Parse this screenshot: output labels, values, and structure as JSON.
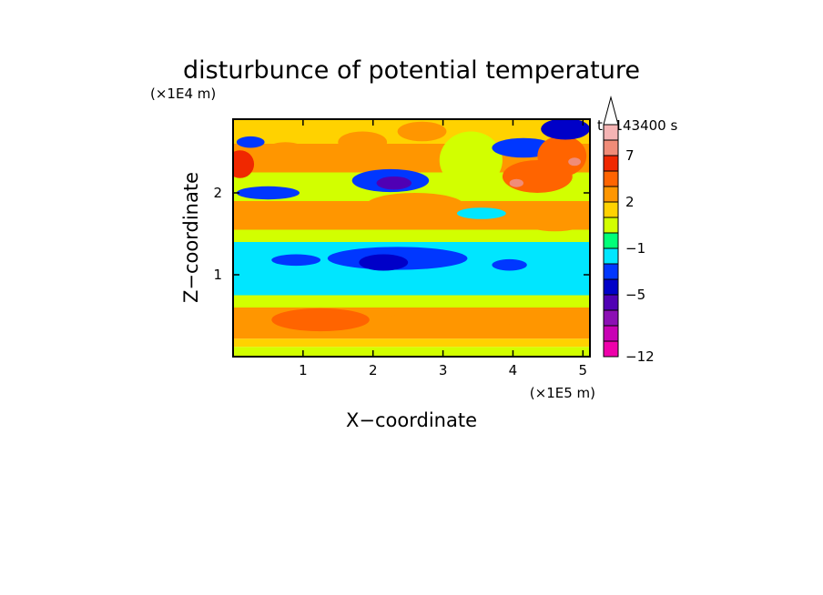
{
  "chart_data": {
    "type": "heatmap",
    "title": "disturbunce of potential temperature",
    "xlabel": "X−coordinate",
    "ylabel": "Z−coordinate",
    "x_unit": "(×1E5 m)",
    "y_unit": "(×1E4 m)",
    "time_label": "t=143400 s",
    "xlim": [
      0,
      5.1
    ],
    "ylim": [
      0,
      2.9
    ],
    "x_ticks": [
      1,
      2,
      3,
      4,
      5
    ],
    "y_ticks": [
      1,
      2
    ],
    "x_tick_labels": [
      "1",
      "2",
      "3",
      "4",
      "5"
    ],
    "y_tick_labels": [
      "1",
      "2"
    ],
    "colorbar": {
      "levels": [
        -12,
        -10,
        -8,
        -6,
        -5,
        -4,
        -3,
        -1,
        0,
        1,
        2,
        4,
        5,
        7,
        9,
        11
      ],
      "labels": [
        {
          "value": -12,
          "text": "−12"
        },
        {
          "value": -5,
          "text": "−5"
        },
        {
          "value": -1,
          "text": "−1"
        },
        {
          "value": 2,
          "text": "2"
        },
        {
          "value": 7,
          "text": "7"
        }
      ],
      "colors": [
        "#ee00aa",
        "#c800b4",
        "#8c0fb4",
        "#5000b4",
        "#0000c8",
        "#0037ff",
        "#00e6ff",
        "#00ff78",
        "#d2ff00",
        "#ffd200",
        "#ff9600",
        "#ff6400",
        "#f02800",
        "#f08c78",
        "#f5b4b4"
      ],
      "extend": "max"
    },
    "bands": [
      {
        "z": [
          0.0,
          0.12
        ],
        "value": 0.5
      },
      {
        "z": [
          0.12,
          0.22
        ],
        "value": 1.2
      },
      {
        "z": [
          0.22,
          0.6
        ],
        "value": 2.6
      },
      {
        "z": [
          0.6,
          0.75
        ],
        "value": 0.6
      },
      {
        "z": [
          0.75,
          1.4
        ],
        "value": -1.5
      },
      {
        "z": [
          1.4,
          1.55
        ],
        "value": 0.5
      },
      {
        "z": [
          1.55,
          1.9
        ],
        "value": 2.8
      },
      {
        "z": [
          1.9,
          2.25
        ],
        "value": 0.6
      },
      {
        "z": [
          2.25,
          2.6
        ],
        "value": 2.5
      },
      {
        "z": [
          2.6,
          2.9
        ],
        "value": 1.0
      }
    ],
    "anomalies": [
      {
        "x": 0.1,
        "z": 2.35,
        "rx": 0.2,
        "rz": 0.17,
        "value": 5.5
      },
      {
        "x": 0.25,
        "z": 2.62,
        "rx": 0.2,
        "rz": 0.07,
        "value": -3.5
      },
      {
        "x": 0.5,
        "z": 2.0,
        "rx": 0.45,
        "rz": 0.08,
        "value": -3.5
      },
      {
        "x": 0.75,
        "z": 2.5,
        "rx": 0.3,
        "rz": 0.12,
        "value": 3.5
      },
      {
        "x": 1.85,
        "z": 2.62,
        "rx": 0.35,
        "rz": 0.13,
        "value": 3.5
      },
      {
        "x": 2.25,
        "z": 2.15,
        "rx": 0.55,
        "rz": 0.14,
        "value": -4.0
      },
      {
        "x": 2.3,
        "z": 2.12,
        "rx": 0.25,
        "rz": 0.08,
        "value": -5.5
      },
      {
        "x": 2.7,
        "z": 2.75,
        "rx": 0.35,
        "rz": 0.12,
        "value": 3.0
      },
      {
        "x": 2.6,
        "z": 1.85,
        "rx": 0.7,
        "rz": 0.15,
        "value": 3.5
      },
      {
        "x": 3.4,
        "z": 2.4,
        "rx": 0.45,
        "rz": 0.35,
        "value": 0.0
      },
      {
        "x": 3.55,
        "z": 1.75,
        "rx": 0.35,
        "rz": 0.07,
        "value": -3.0
      },
      {
        "x": 4.15,
        "z": 2.55,
        "rx": 0.45,
        "rz": 0.12,
        "value": -4.0
      },
      {
        "x": 4.35,
        "z": 2.2,
        "rx": 0.5,
        "rz": 0.2,
        "value": 4.0
      },
      {
        "x": 4.7,
        "z": 2.45,
        "rx": 0.35,
        "rz": 0.25,
        "value": 4.5
      },
      {
        "x": 4.05,
        "z": 2.12,
        "rx": 0.1,
        "rz": 0.05,
        "value": 7.5
      },
      {
        "x": 4.88,
        "z": 2.38,
        "rx": 0.09,
        "rz": 0.05,
        "value": 7.5
      },
      {
        "x": 4.75,
        "z": 2.78,
        "rx": 0.35,
        "rz": 0.13,
        "value": -4.5
      },
      {
        "x": 4.6,
        "z": 1.65,
        "rx": 0.45,
        "rz": 0.12,
        "value": 3.0
      },
      {
        "x": 0.9,
        "z": 1.18,
        "rx": 0.35,
        "rz": 0.07,
        "value": -3.5
      },
      {
        "x": 2.35,
        "z": 1.2,
        "rx": 1.0,
        "rz": 0.14,
        "value": -3.5
      },
      {
        "x": 2.15,
        "z": 1.15,
        "rx": 0.35,
        "rz": 0.1,
        "value": -4.5
      },
      {
        "x": 3.95,
        "z": 1.12,
        "rx": 0.25,
        "rz": 0.07,
        "value": -3.5
      },
      {
        "x": 1.25,
        "z": 0.45,
        "rx": 0.7,
        "rz": 0.14,
        "value": 4.5
      },
      {
        "x": 3.5,
        "z": 0.45,
        "rx": 0.5,
        "rz": 0.12,
        "value": 3.5
      },
      {
        "x": 4.5,
        "z": 0.5,
        "rx": 0.3,
        "rz": 0.1,
        "value": 2.0
      },
      {
        "x": 2.5,
        "z": 0.4,
        "rx": 0.4,
        "rz": 0.12,
        "value": 2.2
      }
    ]
  }
}
